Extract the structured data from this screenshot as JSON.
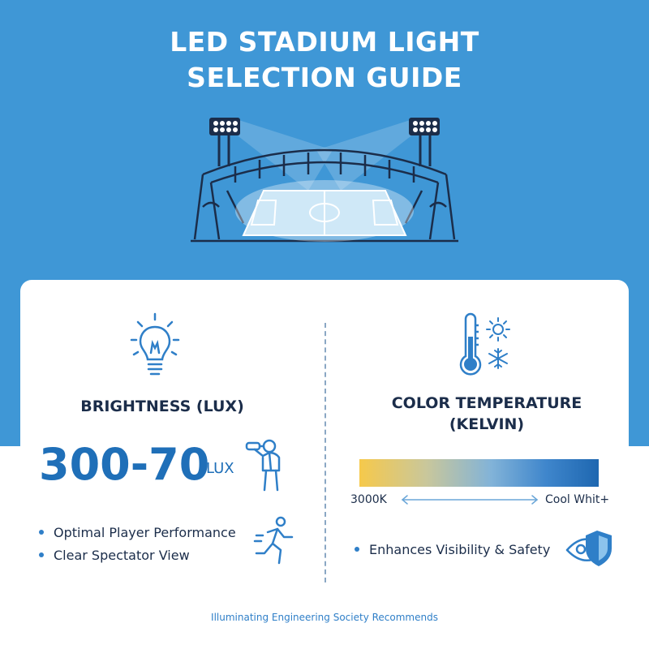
{
  "title": {
    "line1": "LED STADIUM LIGHT",
    "line2": "SELECTION GUIDE"
  },
  "colors": {
    "hero_bg": "#3f97d6",
    "accent": "#1f6fb8",
    "heading": "#1b2d4a",
    "gradient_warm": "#f6c94b",
    "gradient_cool": "#1e67b0"
  },
  "brightness": {
    "heading": "BRIGHTNESS (LUX)",
    "value": "300-70",
    "unit": "LUX",
    "bullets": [
      "Optimal Player Performance",
      "Clear Spectator View"
    ],
    "icons": [
      "lightbulb-icon",
      "spectator-binoculars-icon",
      "running-player-icon"
    ]
  },
  "color_temperature": {
    "heading_line1": "COLOR TEMPERATURE",
    "heading_line2": "(KELVIN)",
    "scale_left": "3000K",
    "scale_right": "Cool Whit+",
    "bullets": [
      "Enhances Visibility & Safety"
    ],
    "icons": [
      "thermometer-icon",
      "sun-icon",
      "snowflake-icon",
      "eye-shield-icon"
    ]
  },
  "footer": "Illuminating Engineering Society Recommends"
}
